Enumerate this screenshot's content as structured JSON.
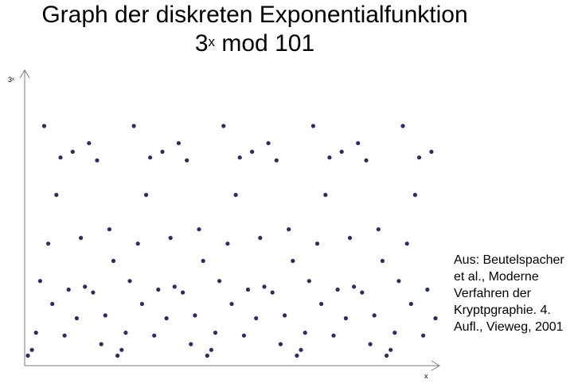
{
  "title": {
    "line1": "Graph der diskreten Exponentialfunktion",
    "line2_base": "3",
    "line2_exp": "x",
    "line2_rest": " mod 101"
  },
  "source_note": "Aus: Beutelspacher et al., Moderne Verfahren der Kryptpgraphie. 4. Aufl., Vieweg, 2001",
  "chart_data": {
    "type": "scatter",
    "title": "Graph der diskreten Exponentialfunktion 3^x mod 101",
    "xlabel": "x",
    "ylabel": "3ˣ",
    "xlim": [
      0,
      100
    ],
    "ylim": [
      0,
      101
    ],
    "grid": false,
    "legend": "none",
    "point_color": "#2b2d5c",
    "series": [
      {
        "x": [
          0,
          1,
          2,
          3,
          4,
          5,
          6,
          7,
          8,
          9,
          10,
          11,
          12,
          13,
          14,
          15,
          16,
          17,
          18,
          19,
          20,
          21,
          22,
          23,
          24,
          25,
          26,
          27,
          28,
          29,
          30,
          31,
          32,
          33,
          34,
          35,
          36,
          37,
          38,
          39,
          40,
          41,
          42,
          43,
          44,
          45,
          46,
          47,
          48,
          49,
          50,
          51,
          52,
          53,
          54,
          55,
          56,
          57,
          58,
          59,
          60,
          61,
          62,
          63,
          64,
          65,
          66,
          67,
          68,
          69,
          70,
          71,
          72,
          73,
          74,
          75,
          76,
          77,
          78,
          79,
          80,
          81,
          82,
          83,
          84,
          85,
          86,
          87,
          88,
          89,
          90,
          91,
          92,
          93,
          94,
          95,
          96,
          97,
          98,
          99,
          100
        ],
        "y": [
          1,
          3,
          9,
          27,
          81,
          40,
          19,
          57,
          70,
          8,
          24,
          72,
          14,
          42,
          25,
          75,
          23,
          69,
          5,
          15,
          45,
          34,
          1,
          3,
          9,
          27,
          81,
          40,
          19,
          57,
          70,
          8,
          24,
          72,
          14,
          42,
          25,
          75,
          23,
          69,
          5,
          15,
          45,
          34,
          1,
          3,
          9,
          27,
          81,
          40,
          19,
          57,
          70,
          8,
          24,
          72,
          14,
          42,
          25,
          75,
          23,
          69,
          5,
          15,
          45,
          34,
          1,
          3,
          9,
          27,
          81,
          40,
          19,
          57,
          70,
          8,
          24,
          72,
          14,
          42,
          25,
          75,
          23,
          69,
          5,
          15,
          45,
          34,
          1,
          3,
          9,
          27,
          81,
          40,
          19,
          57,
          70,
          8,
          24,
          72,
          14
        ]
      }
    ]
  }
}
